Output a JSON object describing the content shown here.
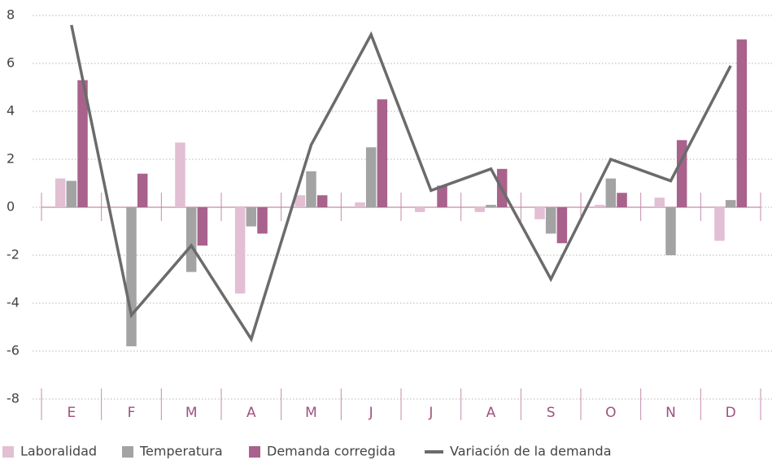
{
  "chart_data": {
    "type": "bar",
    "categories": [
      "E",
      "F",
      "M",
      "A",
      "M",
      "J",
      "J",
      "A",
      "S",
      "O",
      "N",
      "D"
    ],
    "series": [
      {
        "name": "Laboralidad",
        "color": "#e2bfd3",
        "values": [
          1.2,
          0,
          2.7,
          -3.6,
          0.5,
          0.2,
          -0.2,
          -0.2,
          -0.5,
          0.1,
          0.4,
          -1.4
        ]
      },
      {
        "name": "Temperatura",
        "color": "#a3a3a3",
        "values": [
          1.1,
          -5.8,
          -2.7,
          -0.8,
          1.5,
          2.5,
          0,
          0.1,
          -1.1,
          1.2,
          -2.0,
          0.3
        ]
      },
      {
        "name": "Demanda corregida",
        "color": "#a8628c",
        "values": [
          5.3,
          1.4,
          -1.6,
          -1.1,
          0.5,
          4.5,
          0.9,
          1.6,
          -1.5,
          0.6,
          2.8,
          7.0
        ]
      },
      {
        "name": "Variación de la demanda",
        "color": "#6b6b6b",
        "type": "line",
        "values": [
          7.6,
          -4.5,
          -1.6,
          -5.5,
          2.6,
          7.2,
          0.7,
          1.6,
          -3.0,
          2.0,
          1.1,
          5.9
        ]
      }
    ],
    "ylim": [
      -8,
      8
    ],
    "yticks": [
      -8,
      -6,
      -4,
      -2,
      0,
      2,
      4,
      6,
      8
    ],
    "grid": true
  }
}
